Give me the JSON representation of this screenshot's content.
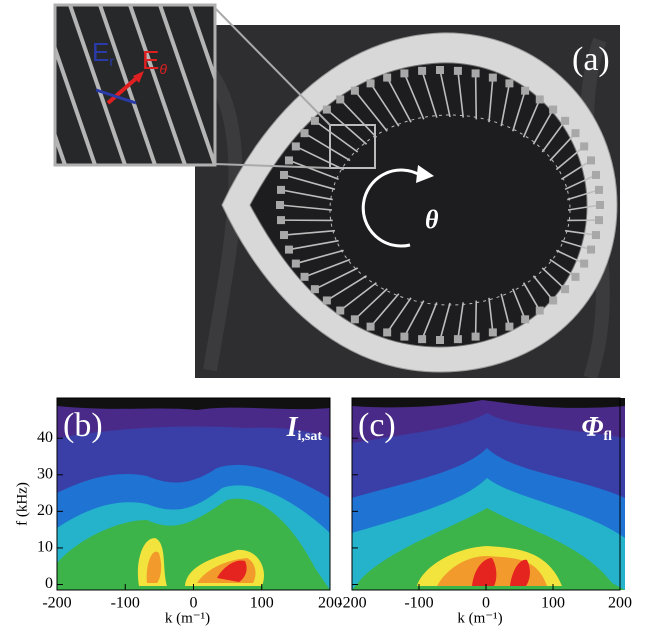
{
  "panel_a": {
    "label": "(a)",
    "inset_e1": "E",
    "inset_e1_sub": "r",
    "inset_e2": "E",
    "inset_e2_sub": "θ",
    "rotation_label": "θ"
  },
  "plots": [
    {
      "label": "(b)",
      "quantity": "I",
      "quantity_sub": "i,sat",
      "ylabel": "f (kHz)",
      "xlabel": "k (m⁻¹)",
      "xlim": [
        -200,
        200
      ],
      "ylim": [
        -1.5,
        51
      ],
      "xticks": [
        -200,
        -100,
        0,
        100,
        200
      ],
      "yticks": [
        0,
        10,
        20,
        30,
        40
      ]
    },
    {
      "label": "(c)",
      "quantity": "Φ",
      "quantity_sub": "fl",
      "xlabel": "k (m⁻¹)",
      "xlim": [
        -200,
        200
      ],
      "ylim": [
        -1.5,
        51
      ],
      "xticks": [
        -200,
        -100,
        0,
        100,
        200
      ],
      "yticks": [
        0,
        10,
        20,
        30,
        40
      ]
    }
  ]
}
